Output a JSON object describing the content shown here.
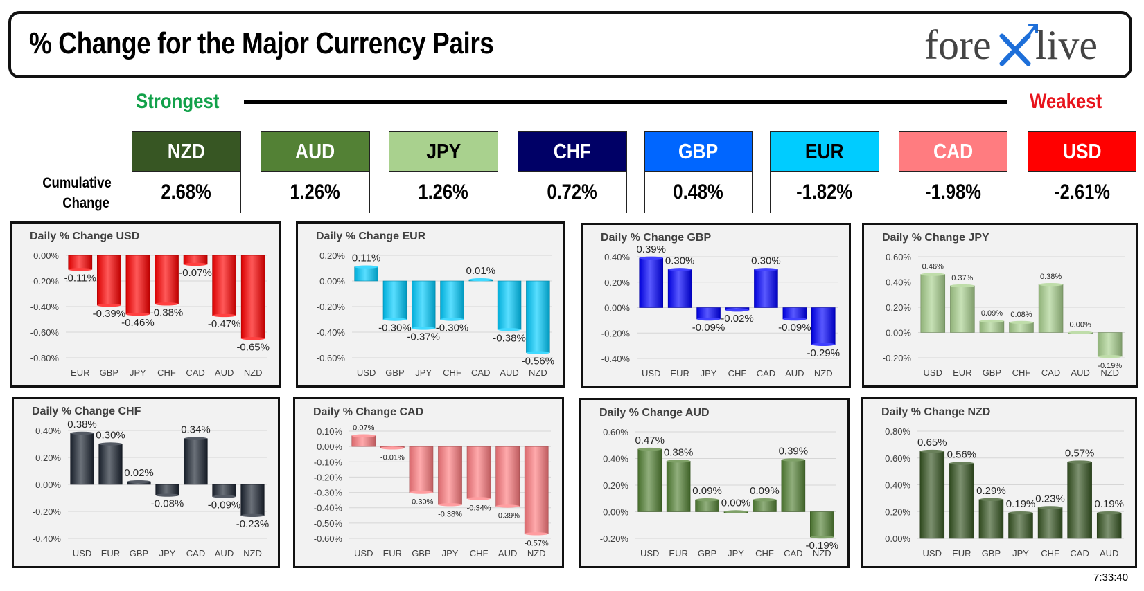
{
  "title": "% Change for the Major Currency Pairs",
  "logo": {
    "text_left": "fore",
    "text_right": "live"
  },
  "strength_scale": {
    "strongest_label": "Strongest",
    "weakest_label": "Weakest"
  },
  "cumulative": {
    "label_line1": "Cumulative",
    "label_line2": "Change",
    "items": [
      {
        "currency": "NZD",
        "value": "2.68%",
        "color": "#375623",
        "text_color": "#ffffff"
      },
      {
        "currency": "AUD",
        "value": "1.26%",
        "color": "#538135",
        "text_color": "#ffffff"
      },
      {
        "currency": "JPY",
        "value": "1.26%",
        "color": "#a9d18e",
        "text_color": "#000000"
      },
      {
        "currency": "CHF",
        "value": "0.72%",
        "color": "#000066",
        "text_color": "#ffffff"
      },
      {
        "currency": "GBP",
        "value": "0.48%",
        "color": "#0066ff",
        "text_color": "#ffffff"
      },
      {
        "currency": "EUR",
        "value": "-1.82%",
        "color": "#00ccff",
        "text_color": "#000000"
      },
      {
        "currency": "CAD",
        "value": "-1.98%",
        "color": "#ff7c80",
        "text_color": "#ffffff"
      },
      {
        "currency": "USD",
        "value": "-2.61%",
        "color": "#ff0000",
        "text_color": "#ffffff"
      }
    ]
  },
  "chart_data": [
    {
      "type": "bar",
      "title": "Daily % Change USD",
      "categories": [
        "EUR",
        "GBP",
        "JPY",
        "CHF",
        "CAD",
        "AUD",
        "NZD"
      ],
      "values": [
        -0.11,
        -0.39,
        -0.46,
        -0.38,
        -0.07,
        -0.47,
        -0.65
      ],
      "labels": [
        "-0.11%",
        "-0.39%",
        "-0.46%",
        "-0.38%",
        "-0.07%",
        "-0.47%",
        "-0.65%"
      ],
      "ylim": [
        -0.8,
        0.0
      ],
      "yticks": [
        0.0,
        -0.2,
        -0.4,
        -0.6,
        -0.8
      ],
      "ytick_labels": [
        "0.00%",
        "-0.20%",
        "-0.40%",
        "-0.60%",
        "-0.80%"
      ],
      "color": "#ff0000",
      "label_size": 15
    },
    {
      "type": "bar",
      "title": "Daily % Change EUR",
      "categories": [
        "USD",
        "GBP",
        "JPY",
        "CHF",
        "CAD",
        "AUD",
        "NZD"
      ],
      "values": [
        0.11,
        -0.3,
        -0.37,
        -0.3,
        0.01,
        -0.38,
        -0.56
      ],
      "labels": [
        "0.11%",
        "-0.30%",
        "-0.37%",
        "-0.30%",
        "0.01%",
        "-0.38%",
        "-0.56%"
      ],
      "ylim": [
        -0.6,
        0.2
      ],
      "yticks": [
        0.2,
        0.0,
        -0.2,
        -0.4,
        -0.6
      ],
      "ytick_labels": [
        "0.20%",
        "0.00%",
        "-0.20%",
        "-0.40%",
        "-0.60%"
      ],
      "color": "#00ccff",
      "label_size": 15
    },
    {
      "type": "bar",
      "title": "Daily % Change GBP",
      "categories": [
        "USD",
        "EUR",
        "JPY",
        "CHF",
        "CAD",
        "AUD",
        "NZD"
      ],
      "values": [
        0.39,
        0.3,
        -0.09,
        -0.02,
        0.3,
        -0.09,
        -0.29
      ],
      "labels": [
        "0.39%",
        "0.30%",
        "-0.09%",
        "-0.02%",
        "0.30%",
        "-0.09%",
        "-0.29%"
      ],
      "ylim": [
        -0.4,
        0.4
      ],
      "yticks": [
        0.4,
        0.2,
        0.0,
        -0.2,
        -0.4
      ],
      "ytick_labels": [
        "0.40%",
        "0.20%",
        "0.00%",
        "-0.20%",
        "-0.40%"
      ],
      "color": "#0000ff",
      "label_size": 15
    },
    {
      "type": "bar",
      "title": "Daily % Change JPY",
      "categories": [
        "USD",
        "EUR",
        "GBP",
        "CHF",
        "CAD",
        "AUD",
        "NZD"
      ],
      "values": [
        0.46,
        0.37,
        0.09,
        0.08,
        0.38,
        0.0,
        -0.19
      ],
      "labels": [
        "0.46%",
        "0.37%",
        "0.09%",
        "0.08%",
        "0.38%",
        "0.00%",
        "-0.19%"
      ],
      "ylim": [
        -0.2,
        0.6
      ],
      "yticks": [
        0.6,
        0.4,
        0.2,
        0.0,
        -0.2
      ],
      "ytick_labels": [
        "0.60%",
        "0.40%",
        "0.20%",
        "0.00%",
        "-0.20%"
      ],
      "color": "#a9d18e",
      "label_size": 11
    },
    {
      "type": "bar",
      "title": "Daily % Change CHF",
      "categories": [
        "USD",
        "EUR",
        "GBP",
        "JPY",
        "CAD",
        "AUD",
        "NZD"
      ],
      "values": [
        0.38,
        0.3,
        0.02,
        -0.08,
        0.34,
        -0.09,
        -0.23
      ],
      "labels": [
        "0.38%",
        "0.30%",
        "0.02%",
        "-0.08%",
        "0.34%",
        "-0.09%",
        "-0.23%"
      ],
      "ylim": [
        -0.4,
        0.4
      ],
      "yticks": [
        0.4,
        0.2,
        0.0,
        -0.2,
        -0.4
      ],
      "ytick_labels": [
        "0.40%",
        "0.20%",
        "0.00%",
        "-0.20%",
        "-0.40%"
      ],
      "color": "#1c2431",
      "label_size": 15
    },
    {
      "type": "bar",
      "title": "Daily % Change CAD",
      "categories": [
        "USD",
        "EUR",
        "GBP",
        "JPY",
        "CHF",
        "AUD",
        "NZD"
      ],
      "values": [
        0.07,
        -0.01,
        -0.3,
        -0.38,
        -0.34,
        -0.39,
        -0.57
      ],
      "labels": [
        "0.07%",
        "-0.01%",
        "-0.30%",
        "-0.38%",
        "-0.34%",
        "-0.39%",
        "-0.57%"
      ],
      "ylim": [
        -0.6,
        0.1
      ],
      "yticks": [
        0.1,
        0.0,
        -0.1,
        -0.2,
        -0.3,
        -0.4,
        -0.5,
        -0.6
      ],
      "ytick_labels": [
        "0.10%",
        "0.00%",
        "-0.10%",
        "-0.20%",
        "-0.30%",
        "-0.40%",
        "-0.50%",
        "-0.60%"
      ],
      "color": "#ff7c80",
      "label_size": 11
    },
    {
      "type": "bar",
      "title": "Daily % Change AUD",
      "categories": [
        "USD",
        "EUR",
        "GBP",
        "JPY",
        "CHF",
        "CAD",
        "NZD"
      ],
      "values": [
        0.47,
        0.38,
        0.09,
        0.0,
        0.09,
        0.39,
        -0.19
      ],
      "labels": [
        "0.47%",
        "0.38%",
        "0.09%",
        "0.00%",
        "0.09%",
        "0.39%",
        "-0.19%"
      ],
      "ylim": [
        -0.2,
        0.6
      ],
      "yticks": [
        0.6,
        0.4,
        0.2,
        0.0,
        -0.2
      ],
      "ytick_labels": [
        "0.60%",
        "0.40%",
        "0.20%",
        "0.00%",
        "-0.20%"
      ],
      "color": "#548235",
      "label_size": 15
    },
    {
      "type": "bar",
      "title": "Daily % Change NZD",
      "categories": [
        "USD",
        "EUR",
        "GBP",
        "JPY",
        "CHF",
        "CAD",
        "AUD"
      ],
      "values": [
        0.65,
        0.56,
        0.29,
        0.19,
        0.23,
        0.57,
        0.19
      ],
      "labels": [
        "0.65%",
        "0.56%",
        "0.29%",
        "0.19%",
        "0.23%",
        "0.57%",
        "0.19%"
      ],
      "ylim": [
        0.0,
        0.8
      ],
      "yticks": [
        0.8,
        0.6,
        0.4,
        0.2,
        0.0
      ],
      "ytick_labels": [
        "0.80%",
        "0.60%",
        "0.40%",
        "0.20%",
        "0.00%"
      ],
      "color": "#375623",
      "label_size": 15
    }
  ],
  "timestamp": "7:33:40"
}
